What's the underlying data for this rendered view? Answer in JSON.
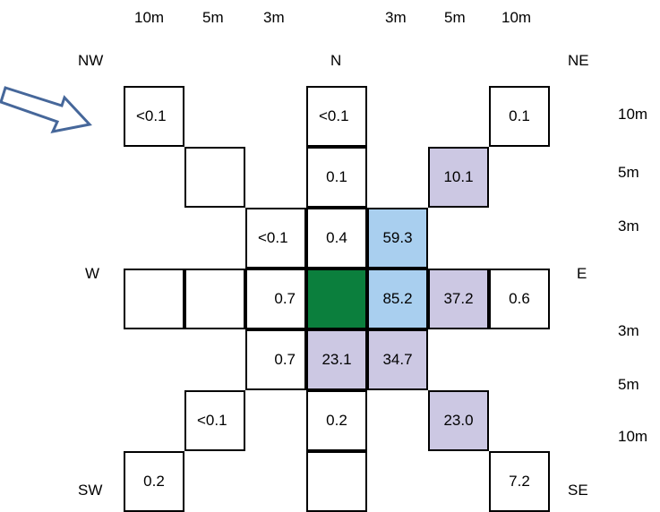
{
  "top_distance_labels": [
    "10m",
    "5m",
    "3m",
    "3m",
    "5m",
    "10m"
  ],
  "right_distance_labels": [
    "10m",
    "5m",
    "3m",
    "3m",
    "5m",
    "10m"
  ],
  "directions": {
    "nw": "NW",
    "n": "N",
    "ne": "NE",
    "w": "W",
    "e": "E",
    "sw": "SW",
    "s": "S",
    "se": "SE"
  },
  "colors": {
    "none": "#ffffff",
    "lavender": "#ccc8e3",
    "light_blue": "#a9cfef",
    "green": "#0b7f3d"
  },
  "arrow_icon": "wind-direction-arrow-icon",
  "cells": [
    {
      "row": 0,
      "col": 0,
      "value": "<0.1",
      "fill": "white"
    },
    {
      "row": 0,
      "col": 3,
      "value": "<0.1",
      "fill": "white"
    },
    {
      "row": 0,
      "col": 6,
      "value": "0.1",
      "fill": "white"
    },
    {
      "row": 1,
      "col": 1,
      "value": "",
      "fill": "white"
    },
    {
      "row": 1,
      "col": 3,
      "value": "0.1",
      "fill": "white"
    },
    {
      "row": 1,
      "col": 5,
      "value": "10.1",
      "fill": "lavender"
    },
    {
      "row": 2,
      "col": 2,
      "value": "<0.1",
      "fill": "white"
    },
    {
      "row": 2,
      "col": 3,
      "value": "0.4",
      "fill": "white"
    },
    {
      "row": 2,
      "col": 4,
      "value": "59.3",
      "fill": "light_blue"
    },
    {
      "row": 3,
      "col": 0,
      "value": "",
      "fill": "white"
    },
    {
      "row": 3,
      "col": 1,
      "value": "",
      "fill": "white"
    },
    {
      "row": 3,
      "col": 2,
      "value": "0.7",
      "fill": "white"
    },
    {
      "row": 3,
      "col": 3,
      "value": "",
      "fill": "green"
    },
    {
      "row": 3,
      "col": 4,
      "value": "85.2",
      "fill": "light_blue"
    },
    {
      "row": 3,
      "col": 5,
      "value": "37.2",
      "fill": "lavender"
    },
    {
      "row": 3,
      "col": 6,
      "value": "0.6",
      "fill": "white"
    },
    {
      "row": 4,
      "col": 2,
      "value": "0.7",
      "fill": "white"
    },
    {
      "row": 4,
      "col": 3,
      "value": "23.1",
      "fill": "lavender"
    },
    {
      "row": 4,
      "col": 4,
      "value": "34.7",
      "fill": "lavender"
    },
    {
      "row": 5,
      "col": 1,
      "value": "<0.1",
      "fill": "white"
    },
    {
      "row": 5,
      "col": 3,
      "value": "0.2",
      "fill": "white"
    },
    {
      "row": 5,
      "col": 5,
      "value": "23.0",
      "fill": "lavender"
    },
    {
      "row": 6,
      "col": 0,
      "value": "0.2",
      "fill": "white"
    },
    {
      "row": 6,
      "col": 3,
      "value": "",
      "fill": "white"
    },
    {
      "row": 6,
      "col": 6,
      "value": "7.2",
      "fill": "white"
    }
  ]
}
